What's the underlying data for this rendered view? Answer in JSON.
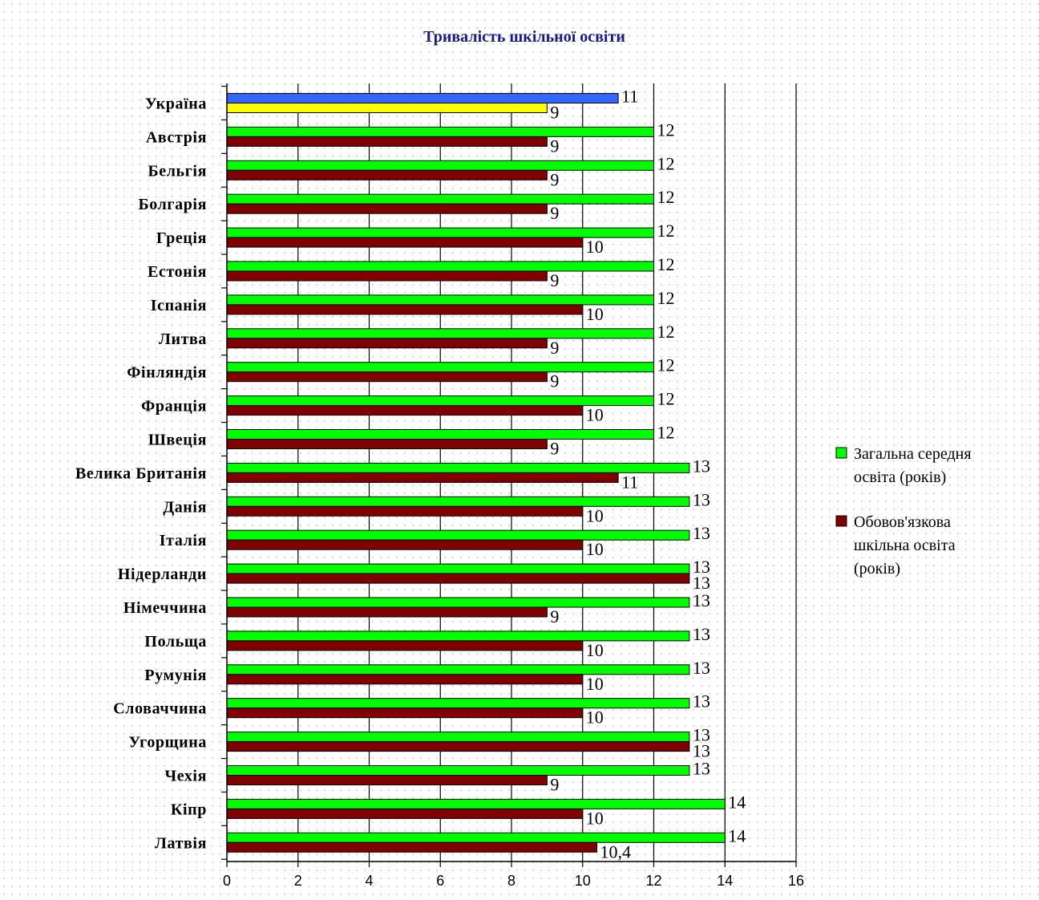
{
  "chart_data": {
    "type": "bar",
    "orientation": "horizontal",
    "title": "Тривалість шкільної освіти",
    "categories": [
      "Україна",
      "Австрія",
      "Бельгія",
      "Болгарія",
      "Греція",
      "Естонія",
      "Іспанія",
      "Литва",
      "Фінляндія",
      "Франція",
      "Швеція",
      "Велика Британія",
      "Данія",
      "Італія",
      "Нідерланди",
      "Німеччина",
      "Польща",
      "Румунія",
      "Словаччина",
      "Угорщина",
      "Чехія",
      "Кіпр",
      "Латвія"
    ],
    "series": [
      {
        "name": "Загальна середня освіта (років)",
        "color": "#00ff00",
        "values": [
          11,
          12,
          12,
          12,
          12,
          12,
          12,
          12,
          12,
          12,
          12,
          13,
          13,
          13,
          13,
          13,
          13,
          13,
          13,
          13,
          13,
          14,
          14
        ],
        "labels": [
          "11",
          "12",
          "12",
          "12",
          "12",
          "12",
          "12",
          "12",
          "12",
          "12",
          "12",
          "13",
          "13",
          "13",
          "13",
          "13",
          "13",
          "13",
          "13",
          "13",
          "13",
          "14",
          "14"
        ]
      },
      {
        "name": "Обовов'язкова шкільна освіта (років)",
        "color": "#800000",
        "values": [
          9,
          9,
          9,
          9,
          10,
          9,
          10,
          9,
          9,
          10,
          9,
          11,
          10,
          10,
          13,
          9,
          10,
          10,
          10,
          13,
          9,
          10,
          10.4
        ],
        "labels": [
          "9",
          "9",
          "9",
          "9",
          "10",
          "9",
          "10",
          "9",
          "9",
          "10",
          "9",
          "11",
          "10",
          "10",
          "13",
          "9",
          "10",
          "10",
          "10",
          "13",
          "9",
          "10",
          "10,4"
        ]
      }
    ],
    "highlight": {
      "category_index": 0,
      "colors": [
        "#3366ff",
        "#ffff00"
      ]
    },
    "xlim": [
      0,
      16
    ],
    "x_ticks": [
      "0",
      "2",
      "4",
      "6",
      "8",
      "10",
      "12",
      "14",
      "16"
    ],
    "grid": "vertical",
    "legend_position": "right",
    "legend": [
      {
        "lines": [
          "Загальна середня",
          "освіта (років)"
        ]
      },
      {
        "lines": [
          "Обовов'язкова",
          "шкільна освіта",
          "(років)"
        ]
      }
    ]
  }
}
